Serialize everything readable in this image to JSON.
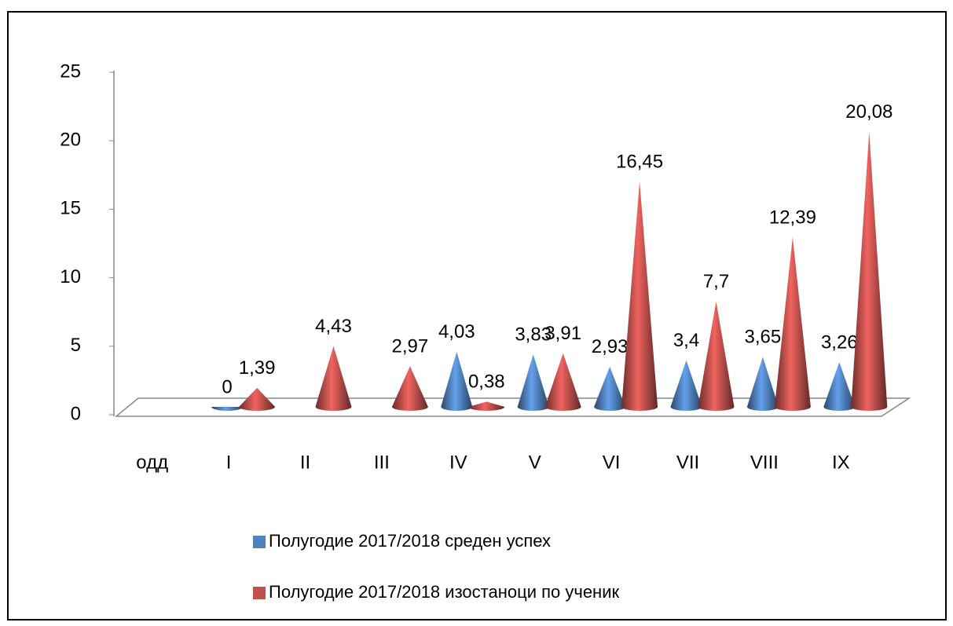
{
  "chart_data": {
    "type": "cone3d",
    "categories": [
      "одд",
      "I",
      "II",
      "III",
      "IV",
      "V",
      "VI",
      "VII",
      "VIII",
      "IX"
    ],
    "series": [
      {
        "name": "Полугодие 2017/2018 среден успех",
        "color": "#4f81bd",
        "values": [
          null,
          0,
          null,
          null,
          4.03,
          3.83,
          2.93,
          3.4,
          3.65,
          3.26
        ],
        "value_labels": [
          null,
          "0",
          null,
          null,
          "4,03",
          "3,83",
          "2,93",
          "3,4",
          "3,65",
          "3,26"
        ]
      },
      {
        "name": "Полугодие 2017/2018 изостаноци по ученик",
        "color": "#c0504d",
        "values": [
          null,
          1.39,
          4.43,
          2.97,
          0.38,
          3.91,
          16.45,
          7.7,
          12.39,
          20.08
        ],
        "value_labels": [
          null,
          "1,39",
          "4,43",
          "2,97",
          "0,38",
          "3,91",
          "16,45",
          "7,7",
          "12,39",
          "20,08"
        ]
      }
    ],
    "ylim": [
      0,
      25
    ],
    "yticks": [
      0,
      5,
      10,
      15,
      20,
      25
    ],
    "legend": "bottom"
  }
}
